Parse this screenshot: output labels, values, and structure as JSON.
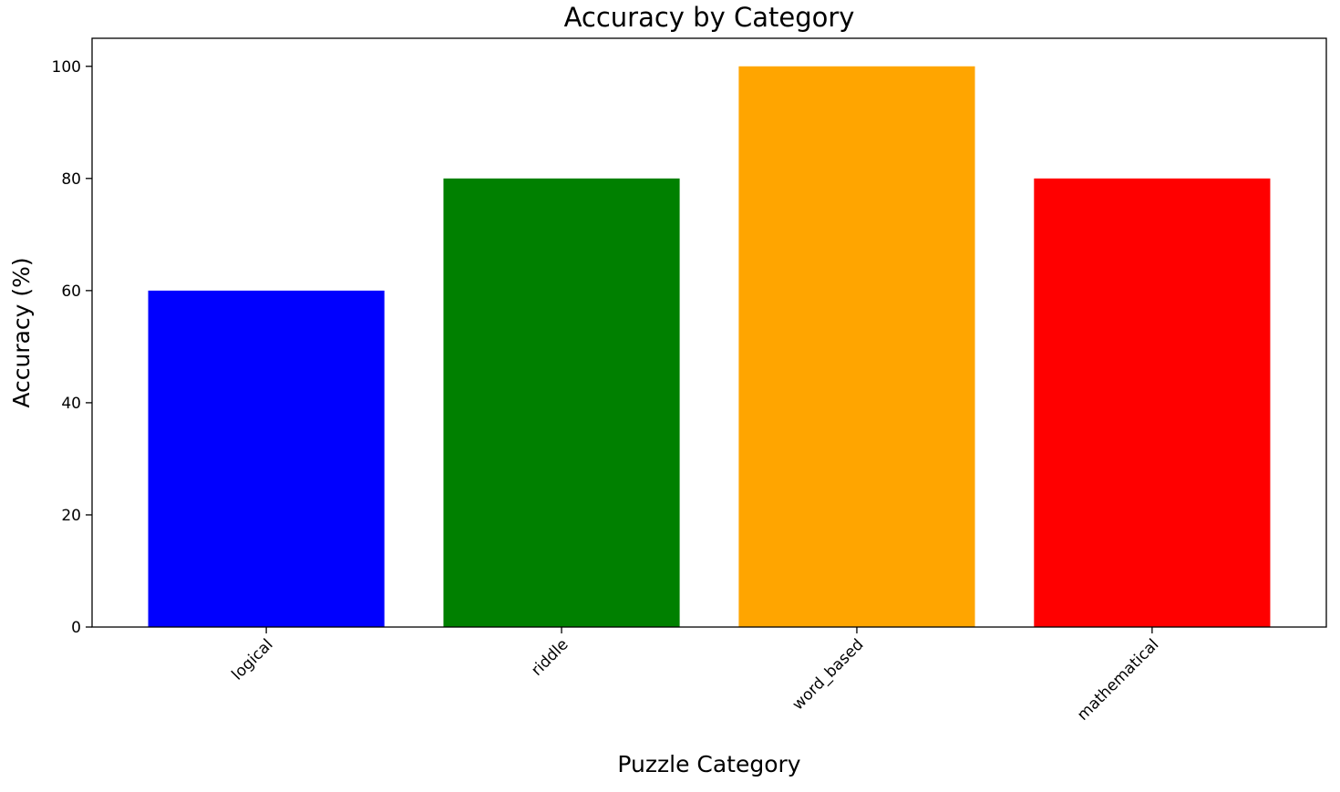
{
  "chart_data": {
    "type": "bar",
    "title": "Accuracy by Category",
    "xlabel": "Puzzle Category",
    "ylabel": "Accuracy (%)",
    "categories": [
      "logical",
      "riddle",
      "word_based",
      "mathematical"
    ],
    "values": [
      60,
      80,
      100,
      80
    ],
    "colors": [
      "#0000ff",
      "#008000",
      "#ffa500",
      "#ff0000"
    ],
    "ylim": [
      0,
      105
    ],
    "yticks": [
      0,
      20,
      40,
      60,
      80,
      100
    ],
    "ytick_labels": [
      "0",
      "20",
      "40",
      "60",
      "80",
      "100"
    ],
    "xtick_rotation_deg": 45,
    "grid": false,
    "legend": "none"
  }
}
